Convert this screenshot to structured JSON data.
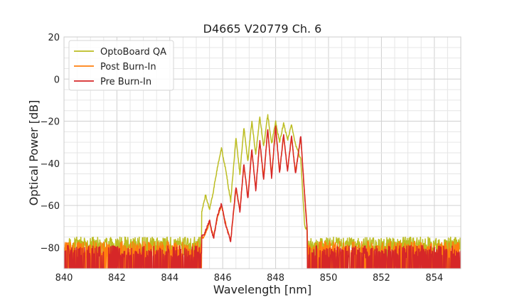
{
  "chart_data": {
    "type": "line",
    "title": "D4665 V20779 Ch. 6",
    "xlabel": "Wavelength [nm]",
    "ylabel": "Optical Power [dB]",
    "xlim": [
      840,
      855
    ],
    "ylim": [
      -90,
      20
    ],
    "xticks": [
      840,
      842,
      844,
      846,
      848,
      850,
      852,
      854
    ],
    "yticks": [
      20,
      0,
      -20,
      -40,
      -60,
      -80
    ],
    "grid": true,
    "grid_minor": true,
    "legend": "top-left",
    "colors": {
      "optoboard": "#bcbd22",
      "post": "#ff7f0e",
      "pre": "#d62728"
    },
    "series": [
      {
        "name": "OptoBoard QA",
        "color": "#bcbd22",
        "noise_floor": -78,
        "x": [
          840,
          844.4,
          844.8,
          845.0,
          845.15,
          845.35,
          845.5,
          845.65,
          845.8,
          845.95,
          846.1,
          846.3,
          846.5,
          846.65,
          846.8,
          846.95,
          847.1,
          847.25,
          847.4,
          847.55,
          847.7,
          847.85,
          848.0,
          848.15,
          848.3,
          848.45,
          848.6,
          848.75,
          848.95,
          849.1,
          849.25,
          855
        ],
        "y": [
          -72,
          -70,
          -69,
          -63,
          -66,
          -55,
          -62,
          -53,
          -42,
          -33,
          -42,
          -58,
          -28,
          -45,
          -23,
          -39,
          -20,
          -36,
          -18,
          -32,
          -17,
          -31,
          -20,
          -30,
          -21,
          -29,
          -22,
          -31,
          -38,
          -70,
          -73,
          -74
        ]
      },
      {
        "name": "Post Burn-In",
        "color": "#ff7f0e",
        "noise_floor": -80,
        "x": [
          840,
          845.3,
          845.5,
          845.65,
          845.8,
          845.95,
          846.1,
          846.3,
          846.5,
          846.65,
          846.8,
          846.95,
          847.1,
          847.25,
          847.4,
          847.55,
          847.7,
          847.85,
          848.0,
          848.15,
          848.3,
          848.45,
          848.6,
          848.75,
          848.95,
          849.1,
          849.25,
          855
        ],
        "y": [
          -80,
          -75,
          -68,
          -75,
          -66,
          -60,
          -68,
          -77,
          -52,
          -62,
          -41,
          -56,
          -34,
          -52,
          -30,
          -47,
          -24,
          -46,
          -23,
          -44,
          -27,
          -43,
          -28,
          -44,
          -28,
          -55,
          -80,
          -80
        ]
      },
      {
        "name": "Pre Burn-In",
        "color": "#d62728",
        "noise_floor": -82,
        "x": [
          840,
          845.3,
          845.5,
          845.65,
          845.8,
          845.95,
          846.1,
          846.3,
          846.5,
          846.65,
          846.8,
          846.95,
          847.1,
          847.25,
          847.4,
          847.55,
          847.7,
          847.85,
          848.0,
          848.15,
          848.3,
          848.45,
          848.6,
          848.75,
          848.95,
          849.1,
          849.25,
          855
        ],
        "y": [
          -82,
          -74,
          -67,
          -76,
          -65,
          -59,
          -69,
          -77,
          -51,
          -63,
          -40,
          -57,
          -33,
          -53,
          -29,
          -48,
          -23,
          -47,
          -22,
          -45,
          -26,
          -44,
          -27,
          -45,
          -27,
          -56,
          -82,
          -82
        ]
      }
    ]
  }
}
